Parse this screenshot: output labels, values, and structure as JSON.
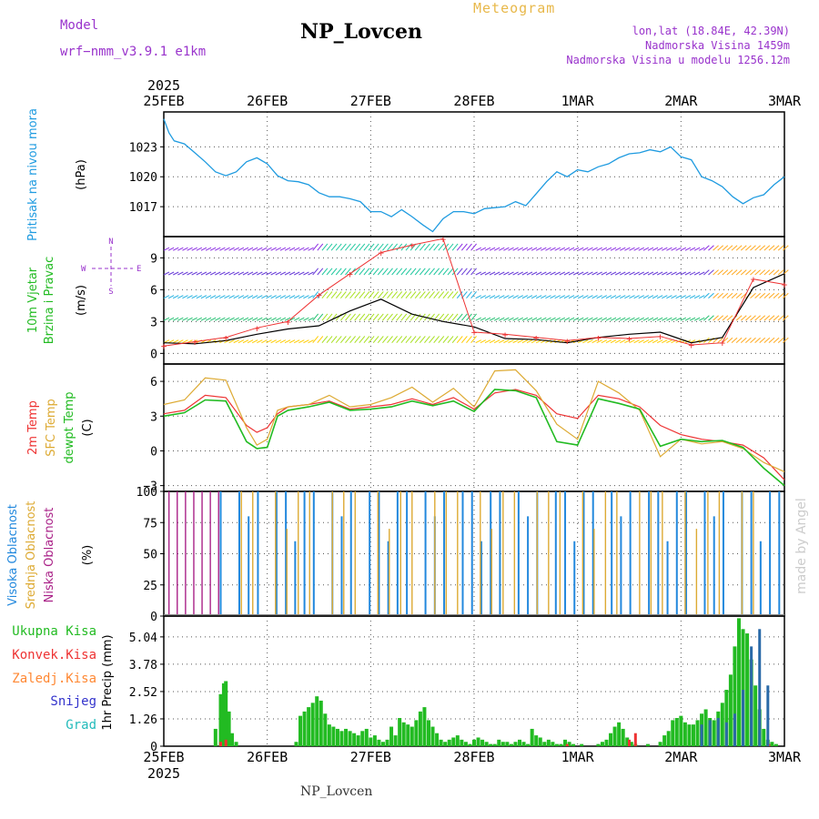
{
  "header": {
    "title": "NP_Lovcen",
    "subtitle": "Meteogram",
    "model_label": "Model",
    "model_name": "wrf−nmm_v3.9.1  e1km",
    "location_lines": [
      "lon,lat (18.84E, 42.39N)",
      "Nadmorska Visina 1459m",
      "Nadmorska Visina u modelu 1256.12m"
    ],
    "footer": "NP_Lovcen",
    "watermark": "made by Angel"
  },
  "colors": {
    "pressure": "#1f9be0",
    "temp2m": "#ee3333",
    "sfc": "#ddaa33",
    "dewpt": "#22bb22",
    "high": "#2288dd",
    "mid": "#ddaa33",
    "low": "#aa2288",
    "total": "#22bb22",
    "conv": "#ee3333",
    "frozen": "#ff8833",
    "snow": "#3333cc",
    "grad": "#22bbbb"
  },
  "chart_data": [
    {
      "type": "line",
      "panel": "pressure",
      "ylabel": "Pritisak na nivou mora",
      "units": "(hPa)",
      "year": "2025",
      "x_labels": [
        "25FEB",
        "26FEB",
        "27FEB",
        "28FEB",
        "1MAR",
        "2MAR",
        "3MAR"
      ],
      "yticks": [
        1017,
        1020,
        1023
      ],
      "ylim": [
        1014,
        1026.5
      ],
      "grid": true,
      "series": [
        {
          "x": [
            0,
            0.05,
            0.1,
            0.2,
            0.3,
            0.4,
            0.5,
            0.6,
            0.7,
            0.8,
            0.9,
            1.0,
            1.1,
            1.2,
            1.3,
            1.4,
            1.5,
            1.6,
            1.7,
            1.8,
            1.9,
            2.0,
            2.1,
            2.2,
            2.3,
            2.4,
            2.5,
            2.6,
            2.7,
            2.8,
            2.9,
            3.0,
            3.1,
            3.2,
            3.3,
            3.4,
            3.5,
            3.6,
            3.7,
            3.8,
            3.9,
            4.0,
            4.1,
            4.2,
            4.3,
            4.4,
            4.5,
            4.6,
            4.7,
            4.8,
            4.9,
            5.0,
            5.1,
            5.2,
            5.3,
            5.4,
            5.5,
            5.6,
            5.7,
            5.8,
            5.9,
            6.0
          ],
          "y": [
            1025.8,
            1024.4,
            1023.6,
            1023.3,
            1022.4,
            1021.5,
            1020.5,
            1020.1,
            1020.5,
            1021.5,
            1021.9,
            1021.3,
            1020.1,
            1019.6,
            1019.5,
            1019.2,
            1018.4,
            1018.0,
            1018.0,
            1017.8,
            1017.5,
            1016.5,
            1016.5,
            1016.0,
            1016.7,
            1016.0,
            1015.2,
            1014.5,
            1015.8,
            1016.5,
            1016.5,
            1016.3,
            1016.8,
            1016.9,
            1017.0,
            1017.5,
            1017.1,
            1018.3,
            1019.5,
            1020.5,
            1020.0,
            1020.7,
            1020.5,
            1021.0,
            1021.3,
            1021.9,
            1022.3,
            1022.4,
            1022.7,
            1022.5,
            1023.0,
            1022.0,
            1021.7,
            1020.0,
            1019.6,
            1019.0,
            1018.0,
            1017.3,
            1017.9,
            1018.2,
            1019.2,
            1020.0
          ]
        }
      ]
    },
    {
      "type": "line",
      "panel": "wind",
      "ylabel": "10m Vjetar",
      "ylabel2": "Brzina i Pravac",
      "units": "(m/s)",
      "compass": {
        "n": "N",
        "s": "S",
        "w": "W",
        "e": "E"
      },
      "yticks": [
        0,
        3,
        6,
        9
      ],
      "ylim": [
        -1,
        11
      ],
      "grid": true,
      "series": [
        {
          "name": "speed",
          "x": [
            0,
            0.3,
            0.6,
            0.9,
            1.2,
            1.5,
            1.8,
            2.1,
            2.4,
            2.7,
            3.0,
            3.3,
            3.6,
            3.9,
            4.2,
            4.5,
            4.8,
            5.1,
            5.4,
            5.7,
            6.0
          ],
          "y": [
            1.0,
            0.9,
            1.2,
            1.8,
            2.3,
            2.6,
            4.0,
            5.1,
            3.7,
            3.0,
            2.5,
            1.4,
            1.3,
            1.0,
            1.5,
            1.8,
            2.0,
            1.0,
            1.5,
            6.2,
            7.5
          ]
        },
        {
          "name": "gust",
          "x": [
            0,
            0.3,
            0.6,
            0.9,
            1.2,
            1.5,
            1.8,
            2.1,
            2.4,
            2.7,
            3.0,
            3.3,
            3.6,
            3.9,
            4.2,
            4.5,
            4.8,
            5.1,
            5.4,
            5.7,
            6.0
          ],
          "y": [
            0.7,
            1.1,
            1.5,
            2.4,
            3.0,
            5.5,
            7.5,
            9.5,
            10.2,
            10.8,
            2.0,
            1.8,
            1.5,
            1.2,
            1.5,
            1.4,
            1.6,
            0.8,
            1.0,
            7.0,
            6.5
          ]
        }
      ]
    },
    {
      "type": "line",
      "panel": "temperature",
      "ylabels": [
        "2m Temp",
        "SFC Temp",
        "dewpt Temp"
      ],
      "units": "(C)",
      "yticks": [
        -3,
        0,
        3,
        6
      ],
      "ylim": [
        -3.5,
        7.5
      ],
      "grid": true,
      "series": [
        {
          "name": "2m Temp",
          "x": [
            0,
            0.2,
            0.4,
            0.6,
            0.8,
            0.9,
            1.0,
            1.1,
            1.2,
            1.4,
            1.6,
            1.8,
            2.0,
            2.2,
            2.4,
            2.6,
            2.8,
            3.0,
            3.2,
            3.4,
            3.6,
            3.8,
            4.0,
            4.2,
            4.4,
            4.6,
            4.8,
            5.0,
            5.2,
            5.4,
            5.6,
            5.8,
            6.0
          ],
          "y": [
            3.2,
            3.5,
            4.8,
            4.6,
            2.2,
            1.6,
            2.0,
            3.2,
            3.8,
            4.0,
            4.3,
            3.6,
            3.8,
            4.0,
            4.5,
            4.0,
            4.6,
            3.6,
            5.0,
            5.3,
            4.8,
            3.2,
            2.8,
            4.8,
            4.5,
            3.8,
            2.2,
            1.4,
            1.0,
            0.8,
            0.5,
            -0.6,
            -2.5
          ]
        },
        {
          "name": "SFC Temp",
          "x": [
            0,
            0.2,
            0.4,
            0.6,
            0.8,
            0.9,
            1.0,
            1.1,
            1.2,
            1.4,
            1.6,
            1.8,
            2.0,
            2.2,
            2.4,
            2.6,
            2.8,
            3.0,
            3.2,
            3.4,
            3.6,
            3.8,
            4.0,
            4.2,
            4.4,
            4.6,
            4.8,
            5.0,
            5.2,
            5.4,
            5.6,
            5.8,
            6.0
          ],
          "y": [
            4.0,
            4.4,
            6.3,
            6.1,
            2.0,
            0.5,
            1.0,
            3.5,
            3.8,
            4.0,
            4.8,
            3.8,
            4.0,
            4.6,
            5.5,
            4.2,
            5.4,
            3.8,
            6.9,
            7.0,
            5.2,
            2.3,
            1.0,
            6.0,
            5.0,
            3.5,
            -0.5,
            1.0,
            0.6,
            0.8,
            0.2,
            -1.0,
            -1.8
          ]
        },
        {
          "name": "dewpt Temp",
          "x": [
            0,
            0.2,
            0.4,
            0.6,
            0.8,
            0.9,
            1.0,
            1.1,
            1.2,
            1.4,
            1.6,
            1.8,
            2.0,
            2.2,
            2.4,
            2.6,
            2.8,
            3.0,
            3.2,
            3.4,
            3.6,
            3.8,
            4.0,
            4.2,
            4.4,
            4.6,
            4.8,
            5.0,
            5.2,
            5.4,
            5.6,
            5.8,
            6.0
          ],
          "y": [
            3.0,
            3.3,
            4.4,
            4.3,
            0.8,
            0.2,
            0.3,
            3.0,
            3.5,
            3.8,
            4.2,
            3.5,
            3.6,
            3.8,
            4.3,
            3.9,
            4.3,
            3.4,
            5.3,
            5.2,
            4.6,
            0.8,
            0.5,
            4.5,
            4.1,
            3.6,
            0.4,
            1.0,
            0.8,
            0.9,
            0.3,
            -1.5,
            -3.0
          ]
        }
      ]
    },
    {
      "type": "bar",
      "panel": "cloud",
      "ylabels": [
        "Visoka Oblacnost",
        "Srednja Oblacnost",
        "Niska Oblacnost"
      ],
      "units": "(%)",
      "yticks": [
        0,
        25,
        50,
        75,
        100
      ],
      "ylim": [
        0,
        100
      ],
      "grid": true,
      "series": [
        {
          "name": "Visoka Oblacnost",
          "x_start": 0.55,
          "x_end": 6.0,
          "step": 0.09,
          "values_pattern": [
            100,
            0,
            100,
            80,
            100,
            0,
            100,
            100,
            60,
            100
          ]
        },
        {
          "name": "Srednja Oblacnost",
          "x_start": 0.75,
          "x_end": 5.8,
          "step": 0.11,
          "values_pattern": [
            100,
            100,
            0,
            100,
            70,
            100,
            100,
            0,
            100
          ]
        },
        {
          "name": "Niska Oblacnost",
          "x_start": 0.05,
          "x_end": 0.55,
          "step": 0.08,
          "values_pattern": [
            100,
            100,
            100,
            100,
            100,
            100,
            100
          ]
        }
      ]
    },
    {
      "type": "bar",
      "panel": "precip",
      "ylabels": [
        "Ukupna Kisa",
        "Konvek.Kisa",
        "Zaledj.Kisa",
        "Snijeg",
        "Grad"
      ],
      "ylabel": "1hr Precip (mm)",
      "yticks": [
        0,
        1.26,
        2.52,
        3.78,
        5.04
      ],
      "ylim": [
        0,
        6.0
      ],
      "grid": true,
      "x_labels": [
        "25FEB",
        "26FEB",
        "27FEB",
        "28FEB",
        "1MAR",
        "2MAR",
        "3MAR"
      ],
      "year": "2025",
      "series": [
        {
          "name": "Ukupna Kisa",
          "x": [
            0.5,
            0.55,
            0.58,
            0.6,
            0.63,
            0.66,
            0.7,
            1.28,
            1.32,
            1.36,
            1.4,
            1.44,
            1.48,
            1.52,
            1.56,
            1.6,
            1.64,
            1.68,
            1.72,
            1.76,
            1.8,
            1.84,
            1.88,
            1.92,
            1.96,
            2.0,
            2.04,
            2.08,
            2.12,
            2.16,
            2.2,
            2.24,
            2.28,
            2.32,
            2.36,
            2.4,
            2.44,
            2.48,
            2.52,
            2.56,
            2.6,
            2.64,
            2.68,
            2.72,
            2.76,
            2.8,
            2.84,
            2.88,
            2.92,
            2.96,
            3.0,
            3.04,
            3.08,
            3.12,
            3.16,
            3.2,
            3.24,
            3.28,
            3.32,
            3.36,
            3.4,
            3.44,
            3.48,
            3.52,
            3.56,
            3.6,
            3.64,
            3.68,
            3.72,
            3.76,
            3.8,
            3.84,
            3.88,
            3.92,
            3.96,
            4.0,
            4.04,
            4.08,
            4.12,
            4.16,
            4.2,
            4.24,
            4.28,
            4.32,
            4.36,
            4.4,
            4.44,
            4.48,
            4.52,
            4.56,
            4.6,
            4.64,
            4.68,
            4.72,
            4.76,
            4.8,
            4.84,
            4.88,
            4.92,
            4.96,
            5.0,
            5.04,
            5.08,
            5.12,
            5.16,
            5.2,
            5.24,
            5.28,
            5.32,
            5.36,
            5.4,
            5.44,
            5.48,
            5.52,
            5.56,
            5.6,
            5.64,
            5.68,
            5.72,
            5.76,
            5.8,
            5.84,
            5.88,
            5.92,
            5.96
          ],
          "y": [
            0.8,
            2.4,
            2.9,
            3.0,
            1.6,
            0.6,
            0.2,
            0.2,
            1.4,
            1.6,
            1.8,
            2.0,
            2.3,
            2.1,
            1.5,
            1.0,
            0.9,
            0.8,
            0.7,
            0.8,
            0.7,
            0.6,
            0.5,
            0.7,
            0.8,
            0.4,
            0.5,
            0.3,
            0.2,
            0.3,
            0.9,
            0.5,
            1.3,
            1.1,
            1.0,
            0.9,
            1.2,
            1.6,
            1.8,
            1.2,
            0.9,
            0.6,
            0.3,
            0.2,
            0.3,
            0.4,
            0.5,
            0.3,
            0.2,
            0.1,
            0.3,
            0.4,
            0.3,
            0.2,
            0.1,
            0.1,
            0.3,
            0.2,
            0.2,
            0.1,
            0.2,
            0.3,
            0.2,
            0.1,
            0.8,
            0.5,
            0.4,
            0.2,
            0.3,
            0.2,
            0.1,
            0.1,
            0.3,
            0.2,
            0.1,
            0.0,
            0.1,
            0.0,
            0.0,
            0.0,
            0.1,
            0.2,
            0.3,
            0.6,
            0.9,
            1.1,
            0.8,
            0.4,
            0.2,
            0.1,
            0.0,
            0.0,
            0.1,
            0.0,
            0.0,
            0.2,
            0.5,
            0.7,
            1.2,
            1.3,
            1.4,
            1.1,
            1.0,
            1.0,
            1.2,
            1.5,
            1.7,
            1.3,
            1.2,
            1.6,
            2.0,
            2.6,
            3.3,
            4.6,
            5.9,
            5.4,
            5.2,
            4.0,
            2.8,
            1.7,
            0.8,
            0.3,
            0.2,
            0.1,
            0.0
          ]
        },
        {
          "name": "Konvek.Kisa",
          "x": [
            0.55,
            0.6,
            3.9,
            4.5,
            4.56,
            5.85
          ],
          "y": [
            0.2,
            0.3,
            0.1,
            0.3,
            0.6,
            0.1
          ]
        },
        {
          "name": "Snijeg",
          "x": [
            5.2,
            5.28,
            5.36,
            5.44,
            5.52,
            5.6,
            5.68,
            5.76,
            5.84
          ],
          "y": [
            1.0,
            1.2,
            1.3,
            1.1,
            1.5,
            2.6,
            4.6,
            5.4,
            2.8
          ]
        }
      ]
    }
  ]
}
